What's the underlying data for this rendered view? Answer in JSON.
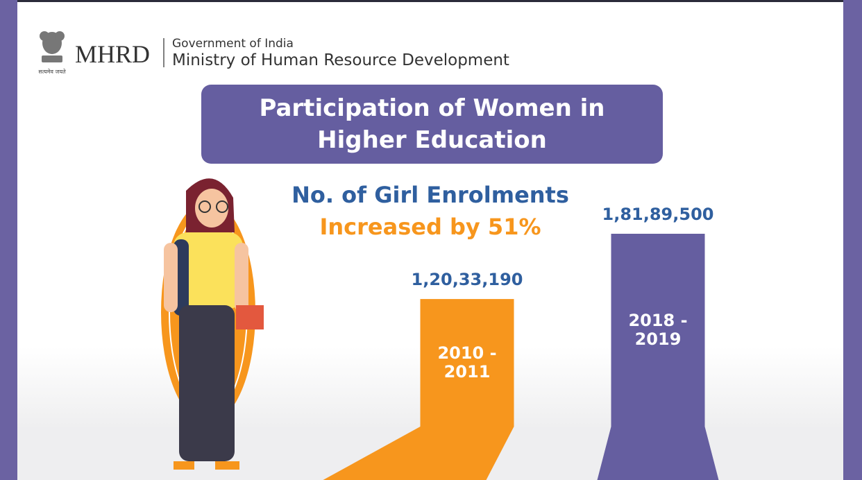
{
  "header": {
    "motto": "सत्यमेव जयते",
    "acronym": "MHRD",
    "government": "Government of India",
    "ministry": "Ministry of Human Resource Development"
  },
  "chart_data": {
    "type": "bar",
    "title": "Participation of Women in Higher Education",
    "subtitle": "No. of Girl Enrolments",
    "annotation": "Increased by 51%",
    "categories": [
      "2010 - 2011",
      "2018 - 2019"
    ],
    "values": [
      12033190,
      18189500
    ],
    "value_labels": [
      "1,20,33,190",
      "1,81,89,500"
    ],
    "colors": [
      "#f7961d",
      "#655ea0"
    ]
  }
}
